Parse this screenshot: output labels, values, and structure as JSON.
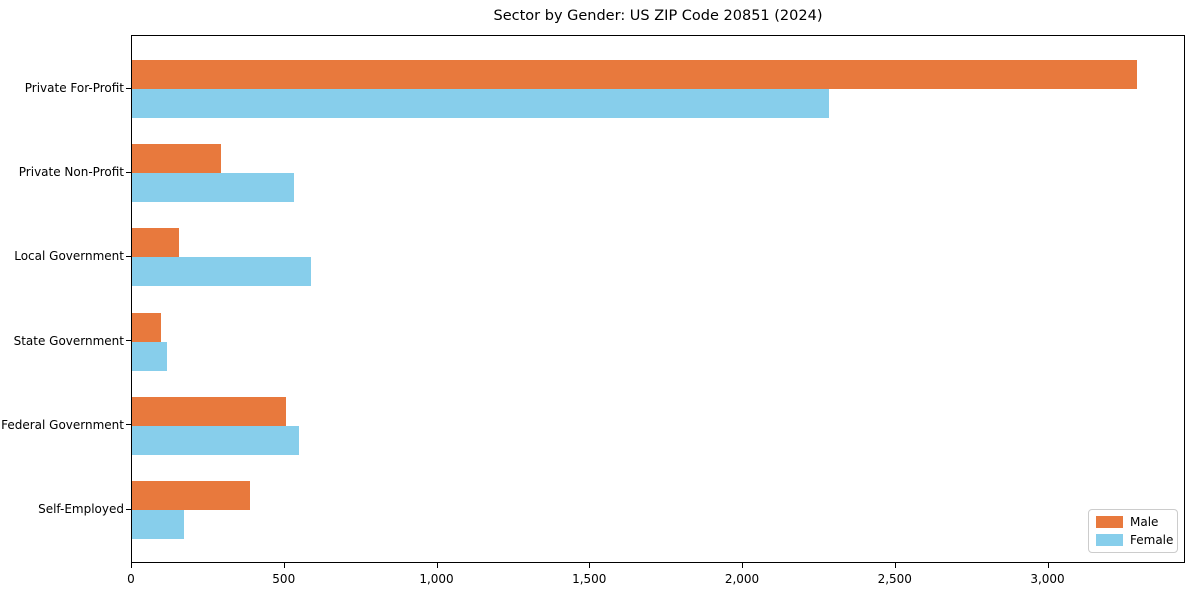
{
  "chart_data": {
    "type": "bar",
    "orientation": "horizontal",
    "title": "Sector by Gender: US ZIP Code 20851 (2024)",
    "categories": [
      "Private For-Profit",
      "Private Non-Profit",
      "Local Government",
      "State Government",
      "Federal Government",
      "Self-Employed"
    ],
    "series": [
      {
        "name": "Male",
        "color": "#E8793D",
        "values": [
          3290,
          290,
          155,
          95,
          505,
          385
        ]
      },
      {
        "name": "Female",
        "color": "#87CEEB",
        "values": [
          2280,
          530,
          585,
          115,
          545,
          170
        ]
      }
    ],
    "xlabel": "",
    "ylabel": "",
    "xlim": [
      0,
      3450
    ],
    "xticks": [
      0,
      500,
      1000,
      1500,
      2000,
      2500,
      3000
    ],
    "xtick_labels": [
      "0",
      "500",
      "1,000",
      "1,500",
      "2,000",
      "2,500",
      "3,000"
    ],
    "grid": false,
    "legend": {
      "position": "lower right"
    },
    "colors": {
      "spine": "#000000",
      "background": "#FFFFFF",
      "text": "#000000"
    }
  }
}
